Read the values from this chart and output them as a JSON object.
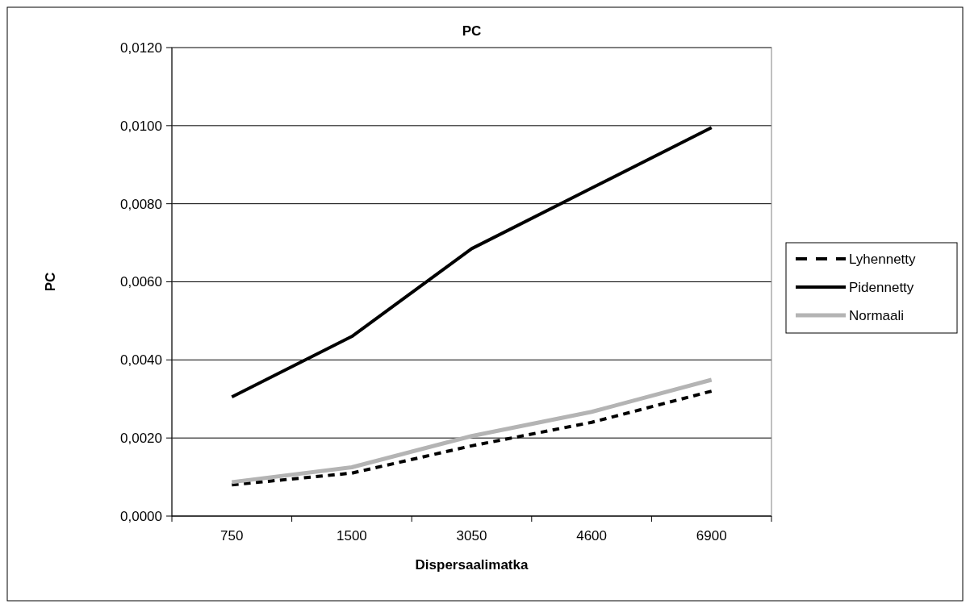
{
  "chart_data": {
    "type": "line",
    "title": "PC",
    "xlabel": "Dispersaalimatka",
    "ylabel": "PC",
    "categories": [
      "750",
      "1500",
      "3050",
      "4600",
      "6900"
    ],
    "series": [
      {
        "name": "Lyhennetty",
        "color": "#000000",
        "line_style": "dashed",
        "values": [
          0.0008,
          0.0011,
          0.0018,
          0.0024,
          0.0032
        ]
      },
      {
        "name": "Pidennetty",
        "color": "#000000",
        "line_style": "solid",
        "values": [
          0.00305,
          0.0046,
          0.00685,
          0.0084,
          0.00995
        ]
      },
      {
        "name": "Normaali",
        "color": "#b4b4b4",
        "line_style": "solid",
        "values": [
          0.00087,
          0.00125,
          0.00205,
          0.00267,
          0.00349
        ]
      }
    ],
    "ylim": [
      0,
      0.012
    ],
    "yticks": [
      {
        "value": 0,
        "label": "0,0000"
      },
      {
        "value": 0.002,
        "label": "0,0020"
      },
      {
        "value": 0.004,
        "label": "0,0040"
      },
      {
        "value": 0.006,
        "label": "0,0060"
      },
      {
        "value": 0.008,
        "label": "0,0080"
      },
      {
        "value": 0.01,
        "label": "0,0100"
      },
      {
        "value": 0.012,
        "label": "0,0120"
      }
    ],
    "grid": "y",
    "legend": "right",
    "marker": "none"
  }
}
